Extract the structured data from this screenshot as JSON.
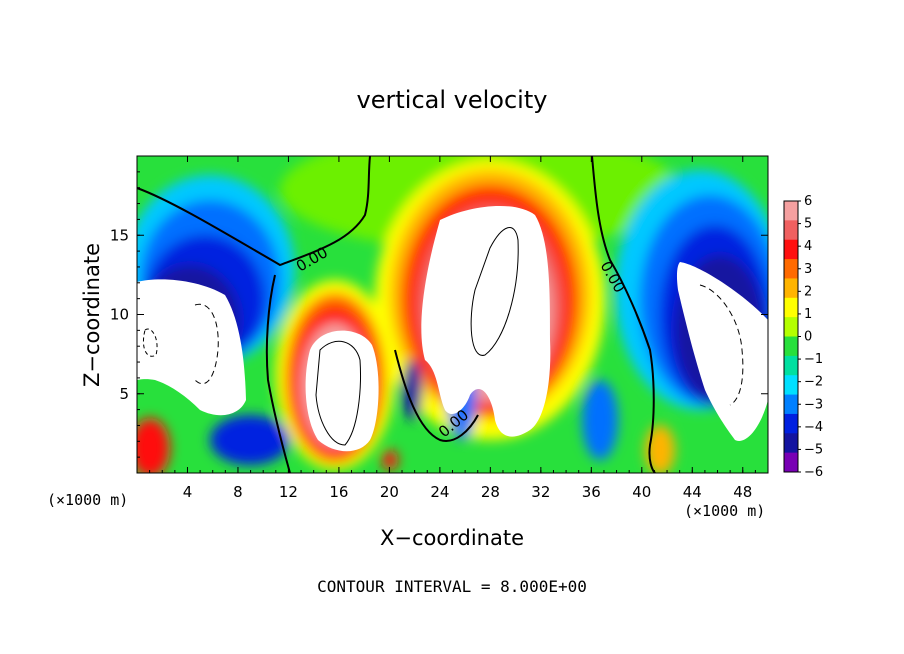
{
  "chart_data": {
    "type": "heatmap",
    "title": "vertical velocity",
    "xlabel": "X−coordinate",
    "ylabel": "Z−coordinate",
    "x_unit": "(×1000 m)",
    "footnote": "CONTOUR INTERVAL = 8.000E+00",
    "xlim": [
      0,
      50
    ],
    "ylim": [
      0,
      20
    ],
    "x_ticks": [
      4,
      8,
      12,
      16,
      20,
      24,
      28,
      32,
      36,
      40,
      44,
      48
    ],
    "x_tick_labels": [
      "4",
      "8",
      "12",
      "16",
      "20",
      "24",
      "28",
      "32",
      "36",
      "40",
      "44",
      "48"
    ],
    "y_ticks": [
      5,
      10,
      15
    ],
    "y_tick_labels": [
      "5",
      "10",
      "15"
    ],
    "colorbar": {
      "min": -6,
      "max": 6,
      "tick_labels": [
        "6",
        "5",
        "4",
        "3",
        "2",
        "1",
        "0",
        "−1",
        "−2",
        "−3",
        "−4",
        "−5",
        "−6"
      ],
      "colors": [
        "#f5a0a0",
        "#f06060",
        "#ff1010",
        "#ff6a00",
        "#ffb400",
        "#ffff00",
        "#b4ff00",
        "#28e03c",
        "#00e0a0",
        "#00e0ff",
        "#0080ff",
        "#0020e0",
        "#1414a0",
        "#7800b4"
      ]
    },
    "contour_labels": [
      "0.00",
      "0.00",
      "0.00"
    ],
    "features": [
      {
        "kind": "updraft",
        "x_range": [
          25,
          33
        ],
        "z_range": [
          3,
          17
        ],
        "sign": "positive"
      },
      {
        "kind": "updraft",
        "x_range": [
          13,
          18
        ],
        "z_range": [
          1.5,
          9
        ],
        "sign": "positive"
      },
      {
        "kind": "downdraft",
        "x_range": [
          0,
          8
        ],
        "z_range": [
          4,
          12
        ],
        "sign": "negative"
      },
      {
        "kind": "downdraft",
        "x_range": [
          43,
          50
        ],
        "z_range": [
          2,
          14
        ],
        "sign": "negative"
      },
      {
        "kind": "updraft",
        "x_range": [
          0,
          2
        ],
        "z_range": [
          0,
          3
        ],
        "sign": "positive"
      }
    ]
  }
}
